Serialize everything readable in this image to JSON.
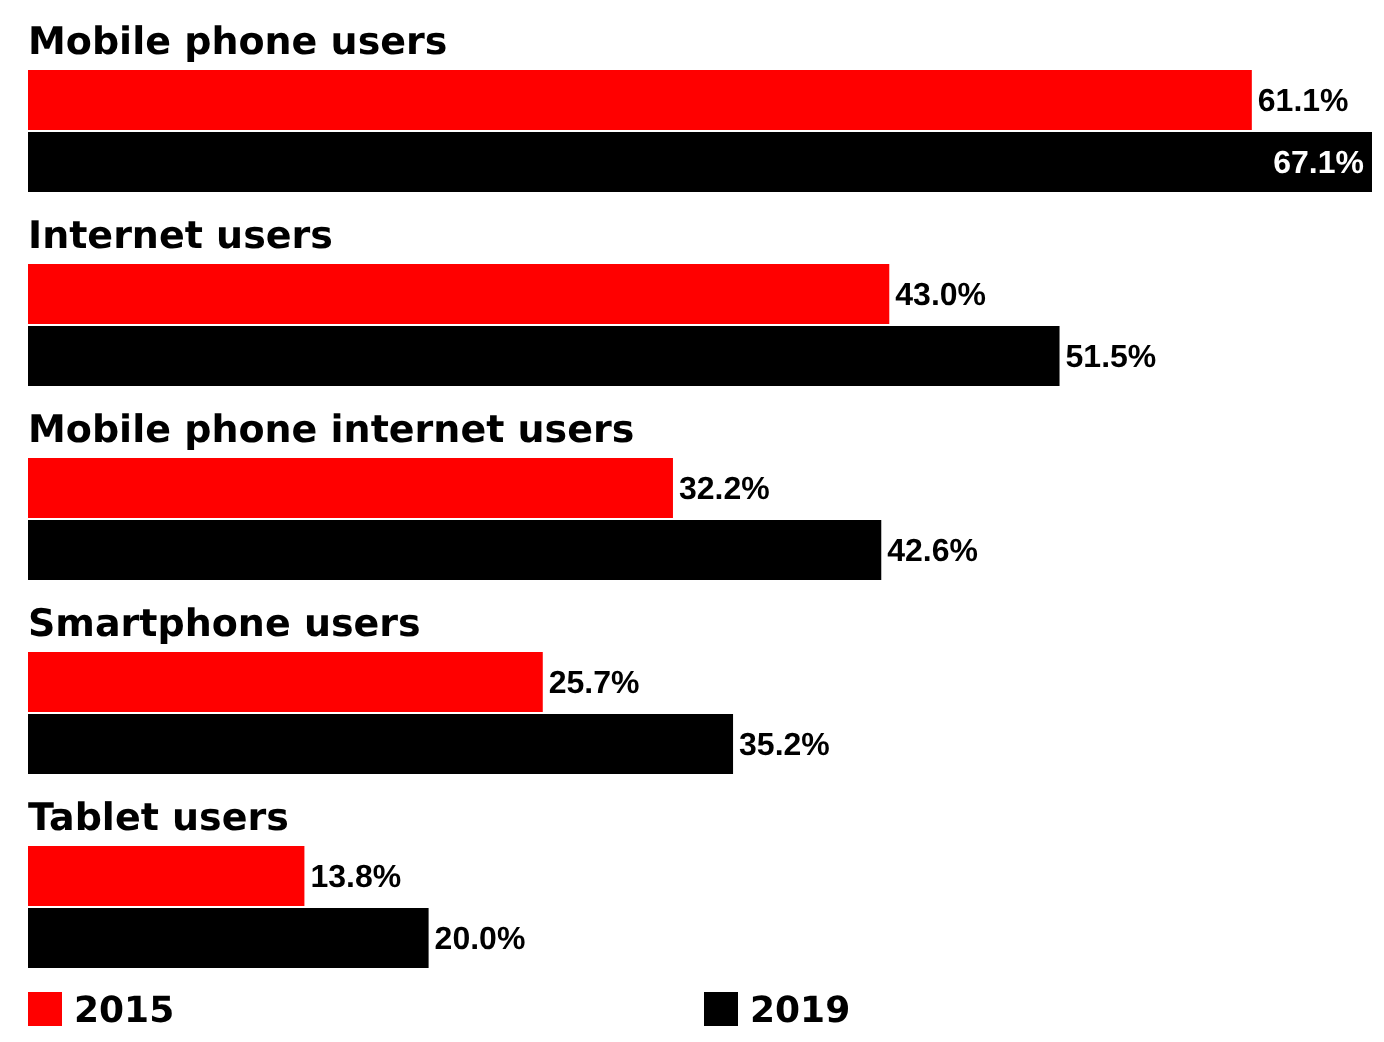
{
  "chart_data": {
    "type": "bar",
    "orientation": "horizontal",
    "categories": [
      "Mobile phone users",
      "Internet users",
      "Mobile phone internet users",
      "Smartphone users",
      "Tablet users"
    ],
    "series": [
      {
        "name": "2015",
        "color": "#ff0000",
        "values": [
          61.1,
          43.0,
          32.2,
          25.7,
          13.8
        ],
        "value_labels": [
          "61.1%",
          "43.0%",
          "32.2%",
          "25.7%",
          "13.8%"
        ]
      },
      {
        "name": "2019",
        "color": "#000000",
        "values": [
          67.1,
          51.5,
          42.6,
          35.2,
          20.0
        ],
        "value_labels": [
          "67.1%",
          "51.5%",
          "42.6%",
          "35.2%",
          "20.0%"
        ]
      }
    ],
    "legend": "bottom"
  }
}
